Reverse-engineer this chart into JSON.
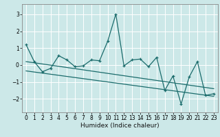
{
  "xlabel": "Humidex (Indice chaleur)",
  "ylabel": "",
  "bg_color": "#cce8e8",
  "grid_color": "#ffffff",
  "line_color": "#1a6b6b",
  "xlim": [
    -0.5,
    23.5
  ],
  "ylim": [
    -2.8,
    3.6
  ],
  "yticks": [
    -2,
    -1,
    0,
    1,
    2,
    3
  ],
  "xticks": [
    0,
    1,
    2,
    3,
    4,
    5,
    6,
    7,
    8,
    9,
    10,
    11,
    12,
    13,
    14,
    15,
    16,
    17,
    18,
    19,
    20,
    21,
    22,
    23
  ],
  "series1": {
    "x": [
      0,
      1,
      2,
      3,
      4,
      5,
      6,
      7,
      8,
      9,
      10,
      11,
      12,
      13,
      14,
      15,
      16,
      17,
      18,
      19,
      20,
      21,
      22,
      23
    ],
    "y": [
      1.2,
      0.2,
      -0.4,
      -0.2,
      0.55,
      0.3,
      -0.1,
      -0.05,
      0.3,
      0.25,
      1.4,
      3.0,
      -0.05,
      0.3,
      0.35,
      -0.1,
      0.45,
      -1.5,
      -0.65,
      -2.3,
      -0.7,
      0.2,
      -1.8,
      -1.7
    ]
  },
  "series2": {
    "x": [
      0,
      23
    ],
    "y": [
      0.2,
      -1.4
    ]
  },
  "series3": {
    "x": [
      0,
      23
    ],
    "y": [
      -0.35,
      -1.85
    ]
  }
}
